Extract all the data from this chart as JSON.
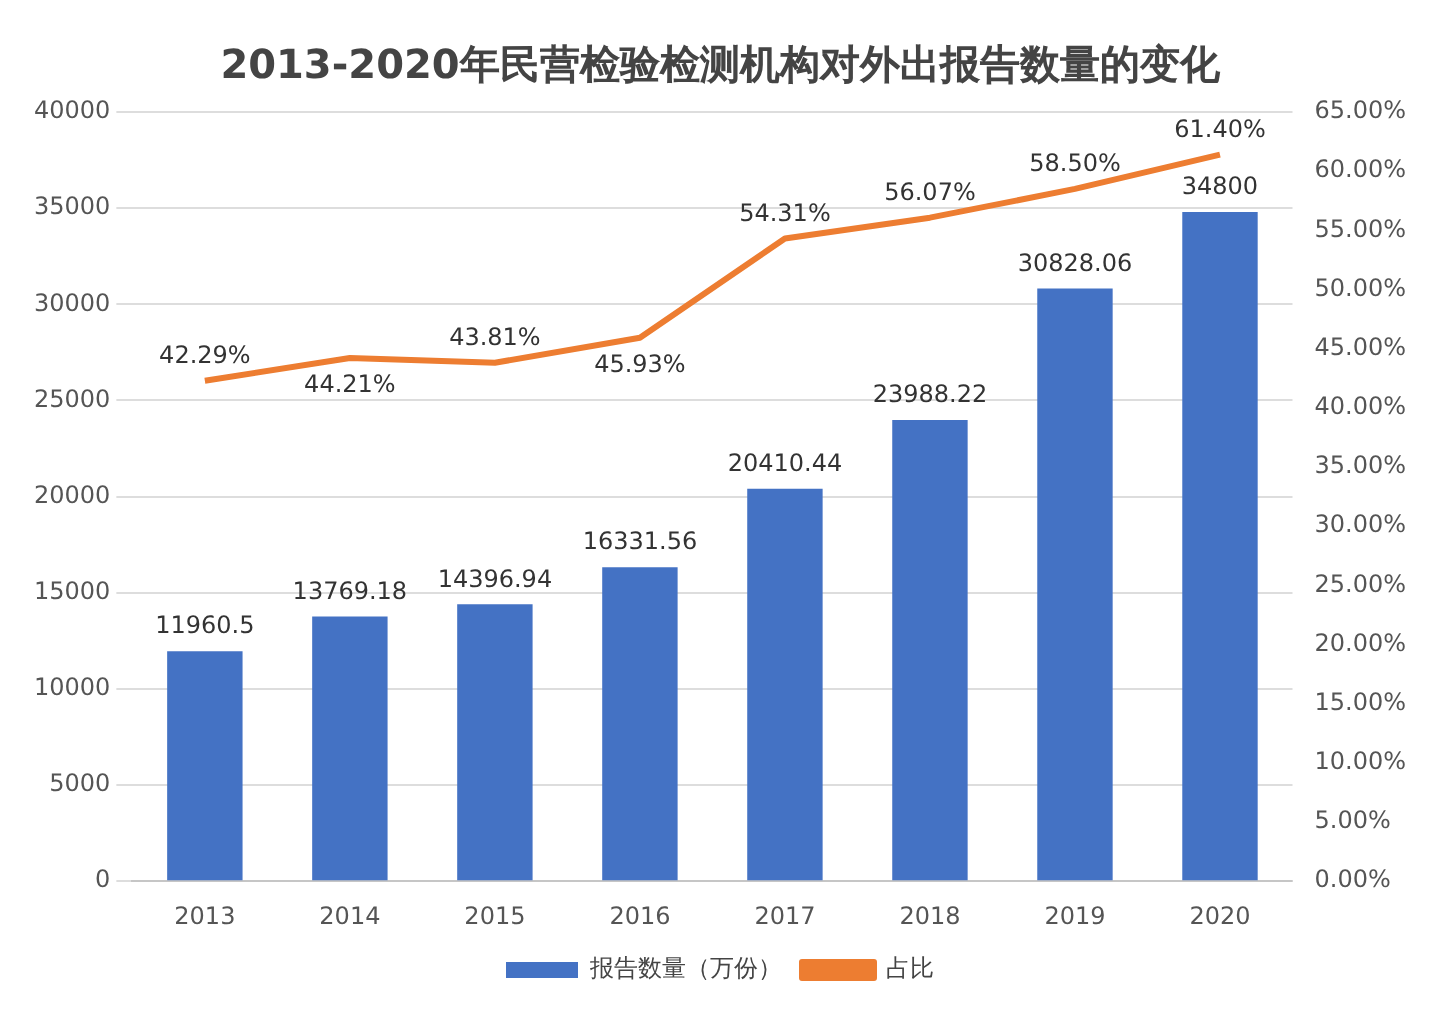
{
  "chart_data": {
    "type": "bar",
    "title": "2013-2020年民营检验检测机构对外出报告数量的变化",
    "categories": [
      "2013",
      "2014",
      "2015",
      "2016",
      "2017",
      "2018",
      "2019",
      "2020"
    ],
    "series": [
      {
        "name": "报告数量（万份）",
        "color": "#4472c4",
        "values": [
          11960.5,
          13769.18,
          14396.94,
          16331.56,
          20410.44,
          23988.22,
          30828.06,
          34800
        ],
        "value_labels": [
          "11960.5",
          "13769.18",
          "14396.94",
          "16331.56",
          "20410.44",
          "23988.22",
          "30828.06",
          "34800"
        ]
      },
      {
        "name": "占比",
        "type": "line",
        "axis": "y2",
        "color": "#ed7d31",
        "values": [
          42.29,
          44.21,
          43.81,
          45.93,
          54.31,
          56.07,
          58.5,
          61.4
        ],
        "value_labels": [
          "42.29%",
          "44.21%",
          "43.81%",
          "45.93%",
          "54.31%",
          "56.07%",
          "58.50%",
          "61.40%"
        ]
      }
    ],
    "ylim": [
      0,
      40000
    ],
    "yticks": [
      0,
      5000,
      10000,
      15000,
      20000,
      25000,
      30000,
      35000,
      40000
    ],
    "y2lim": [
      0,
      65
    ],
    "y2ticks": [
      {
        "value": 0,
        "label": "0.00%"
      },
      {
        "value": 5,
        "label": "5.00%"
      },
      {
        "value": 10,
        "label": "10.00%"
      },
      {
        "value": 15,
        "label": "15.00%"
      },
      {
        "value": 20,
        "label": "20.00%"
      },
      {
        "value": 25,
        "label": "25.00%"
      },
      {
        "value": 30,
        "label": "30.00%"
      },
      {
        "value": 35,
        "label": "35.00%"
      },
      {
        "value": 40,
        "label": "40.00%"
      },
      {
        "value": 45,
        "label": "45.00%"
      },
      {
        "value": 50,
        "label": "50.00%"
      },
      {
        "value": 55,
        "label": "55.00%"
      },
      {
        "value": 60,
        "label": "60.00%"
      },
      {
        "value": 65,
        "label": "65.00%"
      }
    ],
    "grid": "y",
    "legend": "bottom",
    "marker": "none",
    "line_style": "solid"
  }
}
